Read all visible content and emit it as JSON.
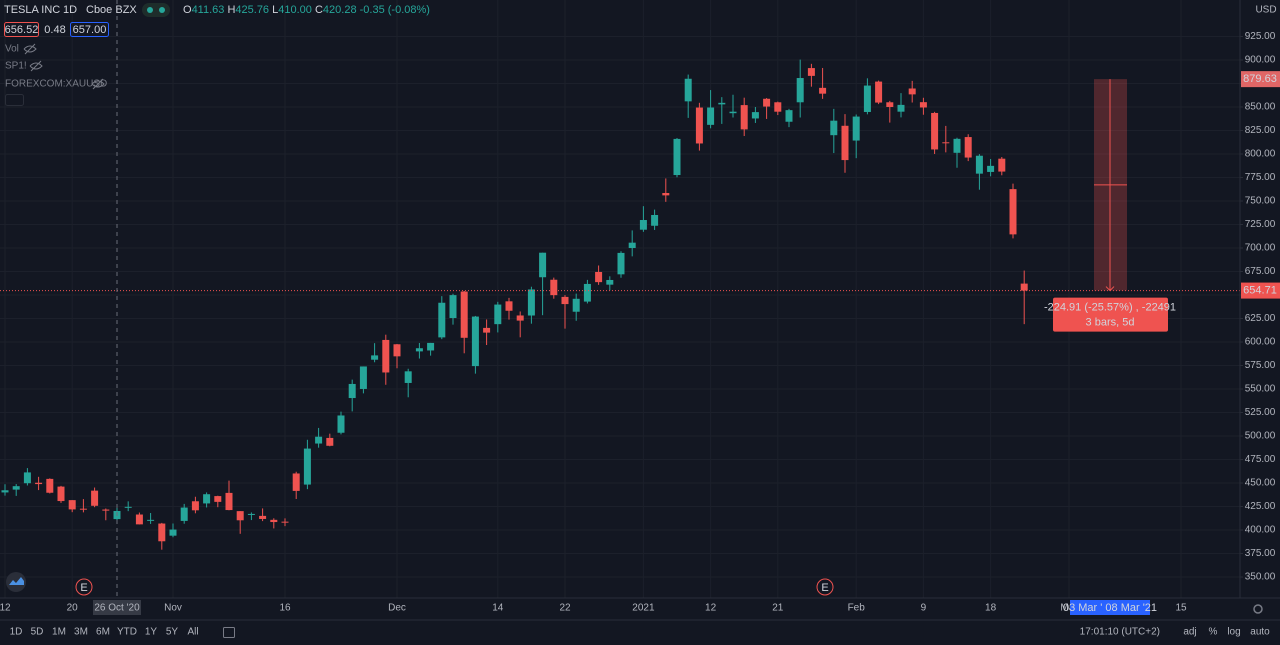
{
  "header": {
    "symbol": "TESLA INC",
    "interval": "1D",
    "exchange": "Cboe BZX",
    "ohlc_labels": [
      "O",
      "H",
      "L",
      "C"
    ],
    "ohlc_values": [
      "411.63",
      "425.76",
      "410.00",
      "420.28"
    ],
    "change": "-0.35 (-0.08%)",
    "bid": "656.52",
    "spread": "0.48",
    "ask": "657.00"
  },
  "indicators": [
    "Vol",
    "SP1!",
    "FOREXCOM:XAUUSD"
  ],
  "toolbar": {
    "ranges": [
      "1D",
      "5D",
      "1M",
      "3M",
      "6M",
      "YTD",
      "1Y",
      "5Y",
      "All"
    ],
    "time": "17:01:10 (UTC+2)",
    "options": [
      "adj",
      "%",
      "log",
      "auto"
    ]
  },
  "chart_data": {
    "type": "candlestick",
    "currency": "USD",
    "up_color": "#26a69a",
    "down_color": "#ef5350",
    "grid": true,
    "ylim": [
      327.7,
      963.8
    ],
    "yticks": [
      {
        "value": 350,
        "label": "350.00"
      },
      {
        "value": 375,
        "label": "375.00"
      },
      {
        "value": 400,
        "label": "400.00"
      },
      {
        "value": 425,
        "label": "425.00"
      },
      {
        "value": 450,
        "label": "450.00"
      },
      {
        "value": 475,
        "label": "475.00"
      },
      {
        "value": 500,
        "label": "500.00"
      },
      {
        "value": 525,
        "label": "525.00"
      },
      {
        "value": 550,
        "label": "550.00"
      },
      {
        "value": 575,
        "label": "575.00"
      },
      {
        "value": 600,
        "label": "600.00"
      },
      {
        "value": 625,
        "label": "625.00"
      },
      {
        "value": 650,
        "label": "650.00"
      },
      {
        "value": 675,
        "label": "675.00"
      },
      {
        "value": 700,
        "label": "700.00"
      },
      {
        "value": 725,
        "label": "725.00"
      },
      {
        "value": 750,
        "label": "750.00"
      },
      {
        "value": 775,
        "label": "775.00"
      },
      {
        "value": 800,
        "label": "800.00"
      },
      {
        "value": 825,
        "label": "825.00"
      },
      {
        "value": 850,
        "label": "850.00"
      },
      {
        "value": 875,
        "label": "875.00"
      },
      {
        "value": 900,
        "label": "900.00"
      },
      {
        "value": 925,
        "label": "925.00"
      }
    ],
    "categories": [
      "12",
      null,
      null,
      null,
      null,
      null,
      "20",
      null,
      null,
      null,
      null,
      null,
      null,
      null,
      null,
      "Nov",
      null,
      null,
      null,
      null,
      null,
      null,
      null,
      null,
      null,
      "16",
      null,
      null,
      null,
      null,
      null,
      null,
      null,
      null,
      null,
      "Dec",
      null,
      null,
      null,
      null,
      null,
      null,
      null,
      null,
      "14",
      null,
      null,
      null,
      null,
      null,
      "22",
      null,
      null,
      null,
      null,
      null,
      null,
      "2021",
      null,
      null,
      null,
      null,
      null,
      "12",
      null,
      null,
      null,
      null,
      null,
      "21",
      null,
      null,
      null,
      null,
      null,
      null,
      "Feb",
      null,
      null,
      null,
      null,
      null,
      "9",
      null,
      null,
      null,
      null,
      null,
      "18",
      null,
      null,
      null,
      null,
      null,
      null,
      "Mar",
      null,
      null,
      null,
      null,
      null,
      null,
      null,
      null,
      null,
      "15",
      null,
      null,
      null,
      null,
      null
    ],
    "open": [
      440,
      443,
      449.8,
      450.3,
      454.4,
      446.2,
      431.8,
      422.7,
      441.9,
      421.8,
      411.63,
      423.8,
      416.5,
      409.96,
      406.9,
      394,
      409.7,
      430.6,
      428.3,
      436.1,
      439.5,
      420.1,
      416.45,
      415.05,
      410.85,
      408.9,
      460.17,
      448.35,
      492,
      497.99,
      503.5,
      540.4,
      550.06,
      581.16,
      602.21,
      597.59,
      556.44,
      590.02,
      591.01,
      604.92,
      625.51,
      653.69,
      574.37,
      615.01,
      619,
      643.28,
      628.23,
      628.19,
      668.9,
      666.24,
      648,
      632.2,
      642.99,
      674.51,
      661,
      672,
      699.99,
      719.46,
      723.66,
      758.49,
      777.63,
      856,
      849.4,
      831,
      852.76,
      843.39,
      852,
      837.8,
      858.74,
      855,
      834.31,
      855,
      891.38,
      870.35,
      820,
      830,
      814.29,
      844.68,
      877.02,
      855,
      845,
      869.67,
      855.12,
      843.64,
      812.44,
      801.26,
      818,
      779.09,
      780.9,
      795,
      762.64,
      662.13,
      null,
      null,
      null,
      null,
      null,
      null,
      null,
      null,
      null,
      null,
      null,
      null,
      null,
      null,
      null,
      null,
      null,
      null,
      null
    ],
    "high": [
      448.7,
      448.9,
      465.9,
      456.6,
      455,
      447,
      431.8,
      432.9,
      445.2,
      422.9,
      425.76,
      430.5,
      418.6,
      418.1,
      407.6,
      406.98,
      427.8,
      435.4,
      440,
      436.5,
      452.5,
      420.1,
      418.7,
      423,
      412.5,
      412.45,
      462,
      496,
      508.6,
      502.5,
      526,
      559.99,
      574,
      598.78,
      607.8,
      597.85,
      571.54,
      598.97,
      599.04,
      648.79,
      651.28,
      654.32,
      627.75,
      624,
      642.75,
      646.9,
      632.5,
      658.82,
      695,
      668.5,
      649.88,
      651.5,
      666.09,
      681.4,
      669.9,
      696.6,
      718.72,
      744.49,
      740.84,
      774,
      816.99,
      884.49,
      854.43,
      868,
      860.47,
      863,
      859.9,
      850,
      859.5,
      855.72,
      848,
      900.4,
      895.9,
      891.5,
      848,
      842.41,
      842,
      880.5,
      878.08,
      856.5,
      864.77,
      877.77,
      859.8,
      844.82,
      829.88,
      817.33,
      821,
      799.84,
      794.69,
      796.79,
      768.5,
      676,
      null,
      null,
      null,
      null,
      null,
      null,
      null,
      null,
      null,
      null,
      null,
      null,
      null,
      null,
      null,
      null,
      null,
      null,
      null
    ],
    "low": [
      436.6,
      436.3,
      447.4,
      442.5,
      438.9,
      428.9,
      419,
      418.8,
      424.3,
      410.4,
      410,
      420.1,
      406,
      406.5,
      379.1,
      392.3,
      406.7,
      417.8,
      424,
      424.3,
      421,
      396,
      410.6,
      409.5,
      401.7,
      404.1,
      433.01,
      443.5,
      487.6,
      489.06,
      501.8,
      526.2,
      545.37,
      578.45,
      554.51,
      572.05,
      541.21,
      582.43,
      585.5,
      603.05,
      618.5,
      588,
      566.34,
      596.8,
      610.2,
      623.8,
      605,
      619.5,
      628.54,
      646.07,
      614.23,
      622.57,
      641,
      660.8,
      655,
      668.36,
      691.12,
      717.19,
      719.2,
      749.1,
      775.2,
      838.39,
      803.62,
      827.34,
      832,
      838.75,
      819.1,
      833,
      837.28,
      841.42,
      828.62,
      838.82,
      871.6,
      858.66,
      801,
      780.1,
      795.56,
      842.2,
      853.06,
      833.42,
      838.97,
      854.75,
      841.75,
      800.02,
      801.73,
      785.33,
      792.44,
      762.01,
      776.27,
      777.37,
      710.2,
      619,
      null,
      null,
      null,
      null,
      null,
      null,
      null,
      null,
      null,
      null,
      null,
      null,
      null,
      null,
      null,
      null,
      null,
      null,
      null
    ],
    "close": [
      442.3,
      446.65,
      461.3,
      448.88,
      439.67,
      430.83,
      421.94,
      422.64,
      425.79,
      420.63,
      420.28,
      424.68,
      406.02,
      410.83,
      388.04,
      400.51,
      423.9,
      420.98,
      438.09,
      429.95,
      421.26,
      410.36,
      417.13,
      411.76,
      408.5,
      408.09,
      441.61,
      486.64,
      499.27,
      489.61,
      521.85,
      555.38,
      574,
      585.76,
      567.6,
      584.76,
      568.82,
      593.38,
      599.04,
      641.76,
      649.88,
      604.48,
      627.07,
      609.99,
      639.83,
      633.25,
      622.77,
      655.9,
      695,
      649.86,
      640.34,
      645.98,
      661.77,
      663.69,
      665.99,
      694.78,
      705.67,
      729.77,
      735.11,
      755.98,
      816.04,
      880.02,
      811.19,
      849.44,
      854.41,
      845,
      826.16,
      844.55,
      850.45,
      844.99,
      846.64,
      880.8,
      883.09,
      864.16,
      835.43,
      793.53,
      839.81,
      872.79,
      854.69,
      849.99,
      852.23,
      863.42,
      849.46,
      804.82,
      811.66,
      816.12,
      796.22,
      798.15,
      787.38,
      781.3,
      714.5,
      654.71,
      null,
      null,
      null,
      null,
      null,
      null,
      null,
      null,
      null,
      null,
      null,
      null,
      null,
      null,
      null,
      null,
      null,
      null,
      null
    ],
    "crosshair_date": "26 Oct '20",
    "earnings_markers": [
      "E",
      "E"
    ],
    "measure": {
      "from_value": 879.63,
      "to_value": 654.71,
      "label": "-224.91 (-25.57%) , -22491",
      "sub_label": "3 bars, 5d",
      "date_label": "03 Mar ' 08 Mar '21"
    }
  }
}
